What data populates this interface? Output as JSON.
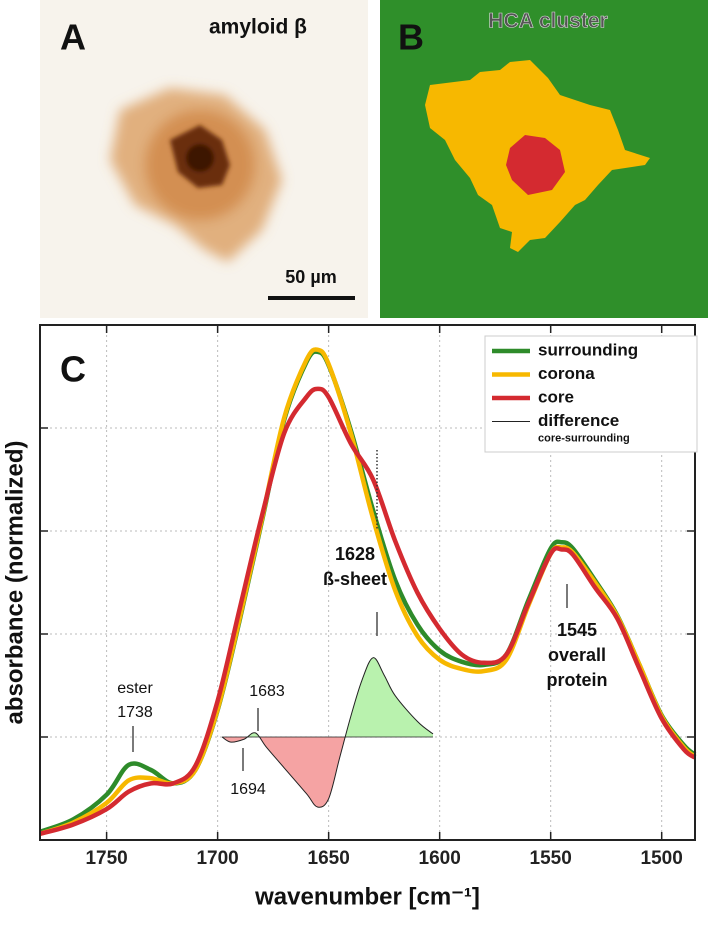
{
  "panels": [
    {
      "label": "A",
      "title": "amyloid β",
      "scale_bar": "50 µm"
    },
    {
      "label": "B",
      "title": "HCA cluster"
    }
  ],
  "chart_data": {
    "type": "line",
    "panel_label": "C",
    "xlabel": "wavenumber [cm⁻¹]",
    "ylabel": "absorbance (normalized)",
    "xlim": [
      1780,
      1485
    ],
    "xticks": [
      1750,
      1700,
      1650,
      1600,
      1550,
      1500
    ],
    "ylim": [
      0,
      5
    ],
    "yticks": [
      1,
      2,
      3,
      4
    ],
    "grid": true,
    "legend": "upper right",
    "x": [
      1780,
      1765,
      1750,
      1740,
      1730,
      1720,
      1710,
      1700,
      1690,
      1680,
      1670,
      1660,
      1655,
      1650,
      1640,
      1630,
      1620,
      1610,
      1600,
      1590,
      1580,
      1570,
      1560,
      1550,
      1545,
      1540,
      1530,
      1520,
      1510,
      1500,
      1490,
      1485
    ],
    "series": [
      {
        "name": "surrounding",
        "color": "#2e8b2a",
        "values": [
          0.08,
          0.2,
          0.44,
          0.73,
          0.68,
          0.55,
          0.68,
          1.26,
          2.14,
          3.1,
          4.08,
          4.64,
          4.74,
          4.61,
          3.98,
          3.2,
          2.52,
          2.09,
          1.84,
          1.73,
          1.7,
          1.8,
          2.33,
          2.83,
          2.89,
          2.83,
          2.52,
          2.18,
          1.7,
          1.21,
          0.92,
          0.83
        ]
      },
      {
        "name": "corona",
        "color": "#f7b800",
        "values": [
          0.06,
          0.17,
          0.36,
          0.58,
          0.6,
          0.55,
          0.68,
          1.27,
          2.16,
          3.12,
          4.1,
          4.66,
          4.76,
          4.62,
          3.95,
          3.12,
          2.42,
          1.98,
          1.75,
          1.66,
          1.64,
          1.75,
          2.28,
          2.78,
          2.84,
          2.79,
          2.5,
          2.17,
          1.7,
          1.2,
          0.9,
          0.81
        ]
      },
      {
        "name": "core",
        "color": "#d42a30",
        "values": [
          0.06,
          0.15,
          0.3,
          0.47,
          0.55,
          0.55,
          0.72,
          1.35,
          2.25,
          3.15,
          3.95,
          4.3,
          4.38,
          4.3,
          3.85,
          3.5,
          2.9,
          2.4,
          2.05,
          1.8,
          1.72,
          1.8,
          2.3,
          2.78,
          2.82,
          2.77,
          2.45,
          2.15,
          1.66,
          1.18,
          0.88,
          0.8
        ]
      },
      {
        "name": "difference",
        "subtitle": "core-surrounding",
        "color": "#222222",
        "fill_positive": "#b9f2ae",
        "fill_negative": "#f5a3a3",
        "x": [
          1698,
          1694,
          1688,
          1683,
          1678,
          1670,
          1660,
          1655,
          1650,
          1645,
          1640,
          1635,
          1630,
          1625,
          1620,
          1610,
          1603
        ],
        "values": [
          1.0,
          0.95,
          0.98,
          1.04,
          0.9,
          0.7,
          0.45,
          0.32,
          0.4,
          0.8,
          1.2,
          1.55,
          1.77,
          1.6,
          1.4,
          1.15,
          1.03
        ]
      }
    ],
    "annotations": [
      {
        "lines": [
          "ester",
          "1738"
        ]
      },
      {
        "lines": [
          "1683"
        ]
      },
      {
        "lines": [
          "1694"
        ]
      },
      {
        "lines": [
          "1628",
          "ß-sheet"
        ]
      },
      {
        "lines": [
          "1545",
          "overall",
          "protein"
        ]
      }
    ]
  }
}
